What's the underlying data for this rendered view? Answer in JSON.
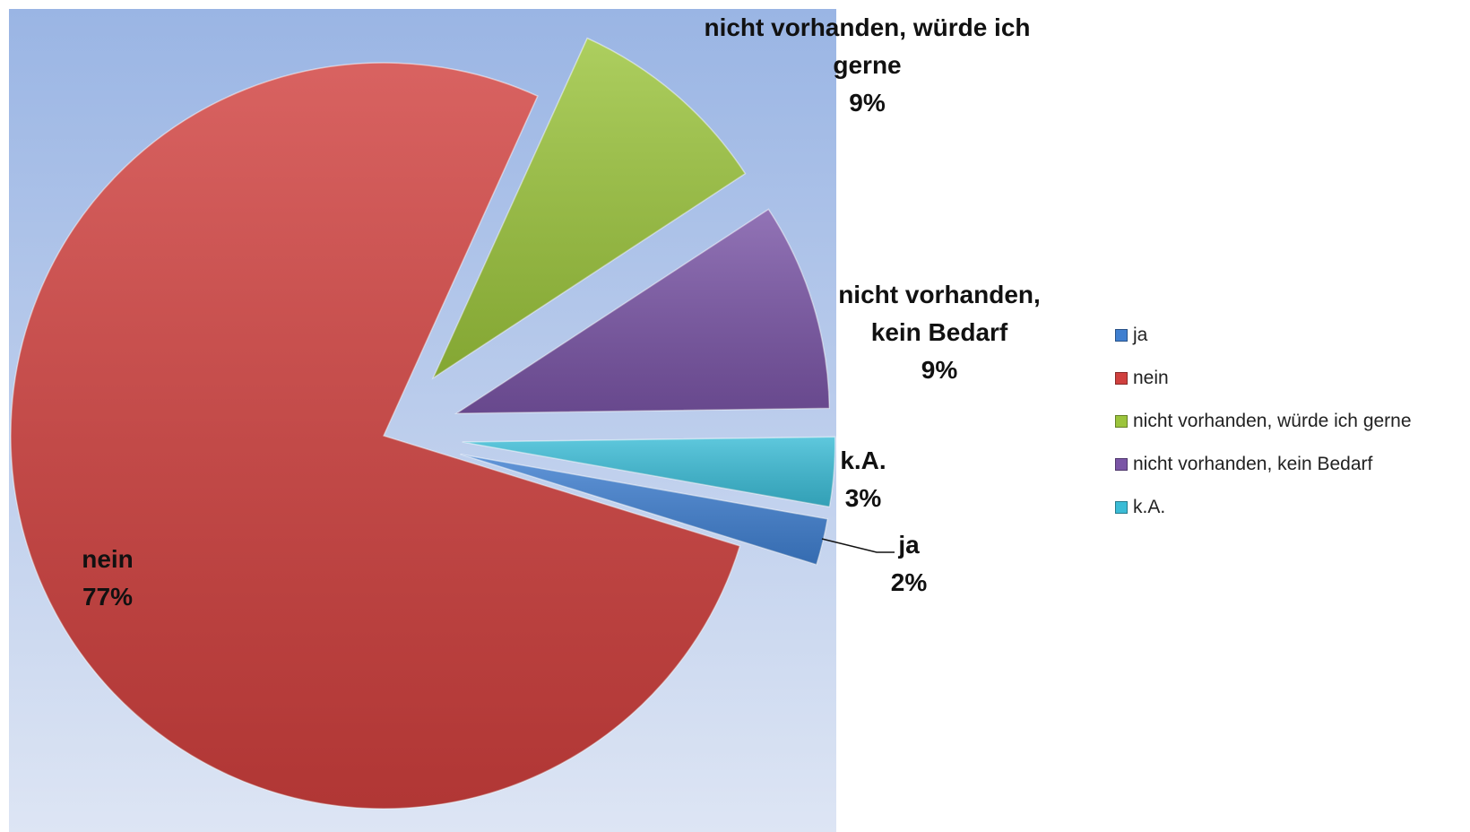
{
  "chart_data": {
    "type": "pie",
    "categories": [
      "ja",
      "nein",
      "nicht vorhanden, würde ich gerne",
      "nicht vorhanden, kein Bedarf",
      "k.A."
    ],
    "values": [
      2,
      77,
      9,
      9,
      3
    ],
    "value_labels": [
      "2%",
      "77%",
      "9%",
      "9%",
      "3%"
    ],
    "colors": [
      "#3f7fd0",
      "#d0403e",
      "#9bc43c",
      "#7a55a6",
      "#3bbcd6"
    ],
    "legend": "right"
  }
}
